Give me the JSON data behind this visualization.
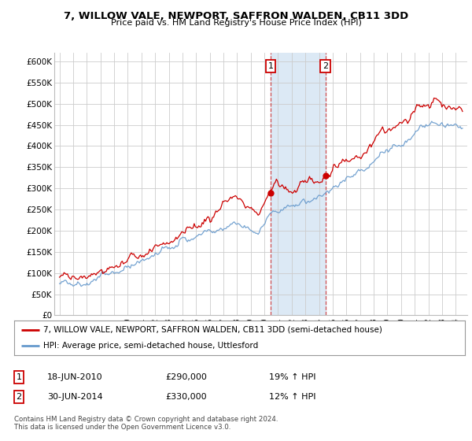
{
  "title": "7, WILLOW VALE, NEWPORT, SAFFRON WALDEN, CB11 3DD",
  "subtitle": "Price paid vs. HM Land Registry's House Price Index (HPI)",
  "ylim": [
    0,
    620000
  ],
  "yticks": [
    0,
    50000,
    100000,
    150000,
    200000,
    250000,
    300000,
    350000,
    400000,
    450000,
    500000,
    550000,
    600000
  ],
  "ytick_labels": [
    "£0",
    "£50K",
    "£100K",
    "£150K",
    "£200K",
    "£250K",
    "£300K",
    "£350K",
    "£400K",
    "£450K",
    "£500K",
    "£550K",
    "£600K"
  ],
  "legend_line1": "7, WILLOW VALE, NEWPORT, SAFFRON WALDEN, CB11 3DD (semi-detached house)",
  "legend_line2": "HPI: Average price, semi-detached house, Uttlesford",
  "line1_color": "#cc0000",
  "line2_color": "#6699cc",
  "purchase1_date": "18-JUN-2010",
  "purchase1_price": 290000,
  "purchase1_pct": "19%",
  "purchase2_date": "30-JUN-2014",
  "purchase2_price": 330000,
  "purchase2_pct": "12%",
  "purchase1_t": 2010.46,
  "purchase2_t": 2014.46,
  "annotation_text": "Contains HM Land Registry data © Crown copyright and database right 2024.\nThis data is licensed under the Open Government Licence v3.0.",
  "bg_color": "#ffffff",
  "grid_color": "#cccccc",
  "shaded_color": "#dce9f5",
  "start_year": 1995,
  "end_year": 2024.5
}
